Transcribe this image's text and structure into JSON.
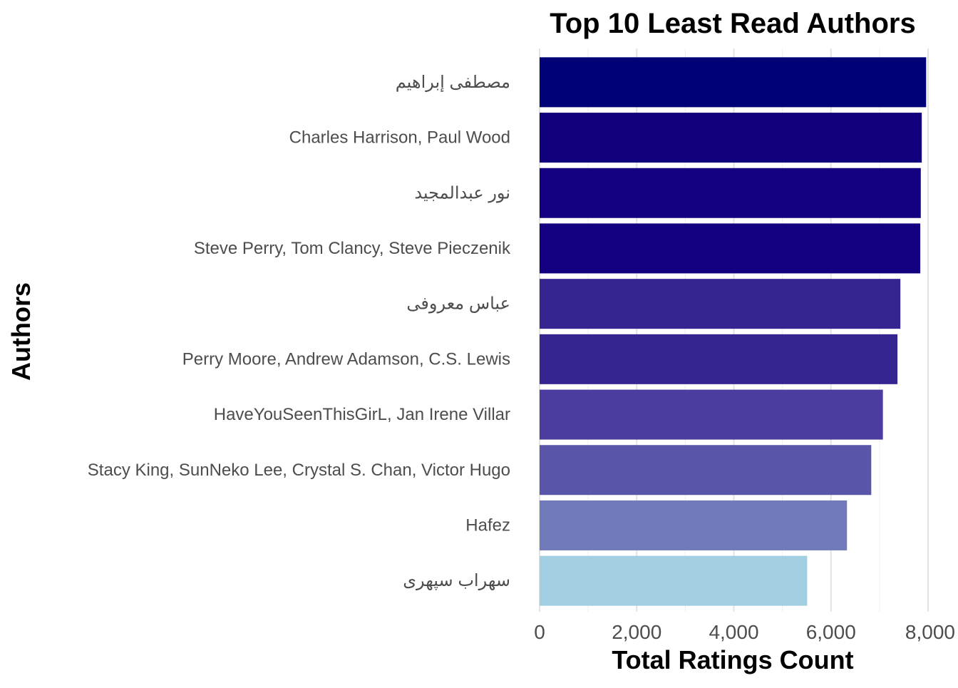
{
  "chart_data": {
    "type": "bar",
    "orientation": "horizontal",
    "title": "Top 10 Least Read Authors",
    "xlabel": "Total Ratings Count",
    "ylabel": "Authors",
    "xlim": [
      0,
      8000
    ],
    "x_ticks": [
      0,
      2000,
      4000,
      6000,
      8000
    ],
    "x_tick_labels": [
      "0",
      "2,000",
      "4,000",
      "6,000",
      "8,000"
    ],
    "grid": true,
    "legend": "none",
    "categories": [
      "مصطفى إبراهيم",
      "Charles Harrison, Paul Wood",
      "نور عبدالمجيد",
      "Steve Perry, Tom Clancy, Steve Pieczenik",
      "عباس معروفی",
      "Perry Moore, Andrew Adamson, C.S. Lewis",
      "HaveYouSeenThisGirL, Jan Irene Villar",
      "Stacy King, SunNeko Lee, Crystal S. Chan, Victor Hugo",
      "Hafez",
      "سهراب سپهری"
    ],
    "values": [
      7960,
      7870,
      7850,
      7840,
      7430,
      7370,
      7070,
      6830,
      6330,
      5510
    ],
    "colors": [
      "#000077",
      "#11007b",
      "#130080",
      "#130080",
      "#352591",
      "#352591",
      "#4a3d9f",
      "#5955a9",
      "#717bbb",
      "#a1cfe1"
    ]
  }
}
